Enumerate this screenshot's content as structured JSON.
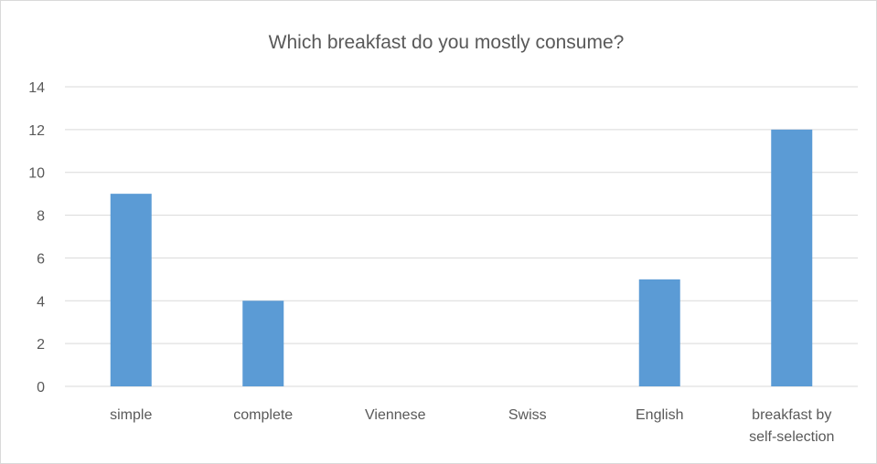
{
  "chart_data": {
    "type": "bar",
    "title": "Which breakfast do you mostly consume?",
    "categories": [
      "simple",
      "complete",
      "Viennese",
      "Swiss",
      "English",
      "breakfast by self-selection"
    ],
    "category_lines": [
      [
        "simple"
      ],
      [
        "complete"
      ],
      [
        "Viennese"
      ],
      [
        "Swiss"
      ],
      [
        "English"
      ],
      [
        "breakfast by",
        "self-selection"
      ]
    ],
    "values": [
      9,
      4,
      0,
      0,
      5,
      12
    ],
    "ylim": [
      0,
      14
    ],
    "yticks": [
      0,
      2,
      4,
      6,
      8,
      10,
      12,
      14
    ],
    "xlabel": "",
    "ylabel": "",
    "grid": true,
    "legend": "none",
    "bar_color": "#5b9bd5",
    "grid_color": "#d9d9d9",
    "text_color": "#595959"
  }
}
